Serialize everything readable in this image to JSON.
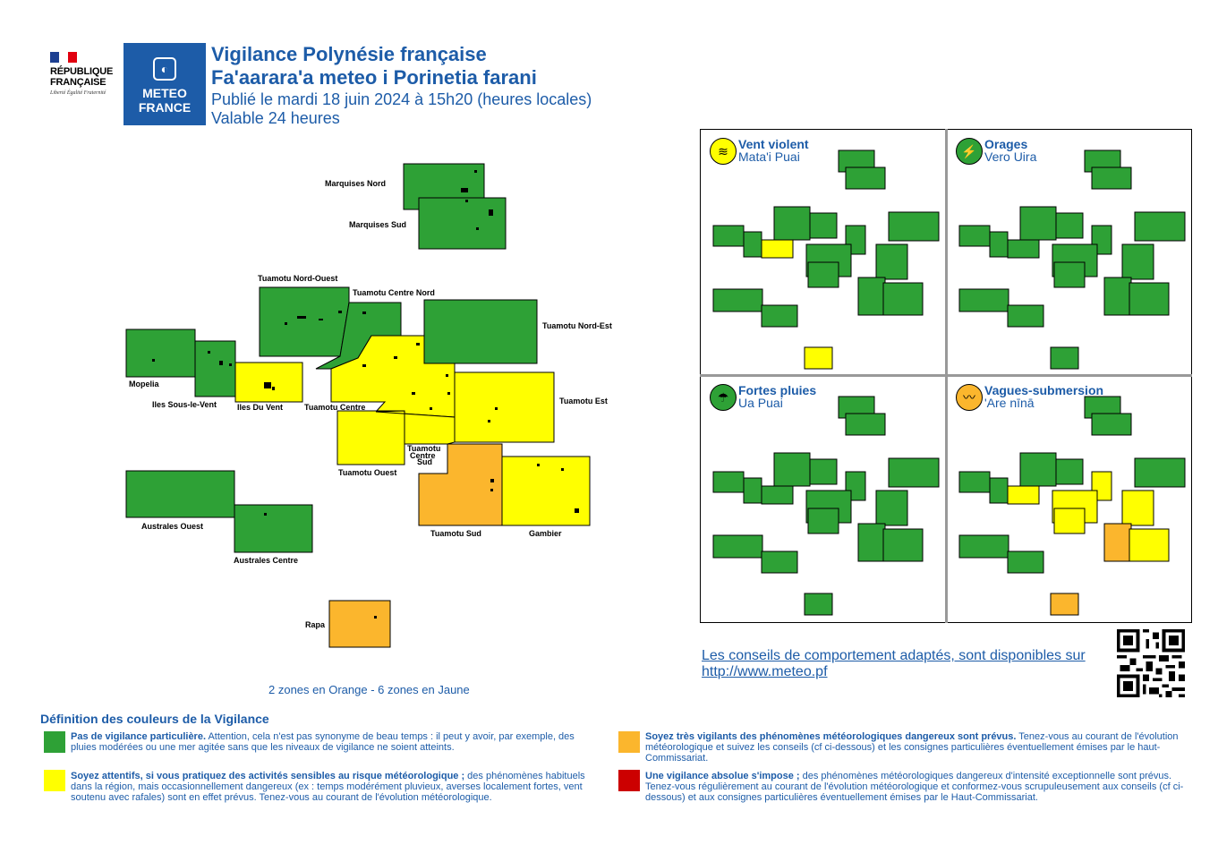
{
  "header": {
    "republique_name": "RÉPUBLIQUE FRANÇAISE",
    "republique_motto": "Liberté Égalité Fraternité",
    "meteo_logo_text": "METEO FRANCE",
    "title_fr": "Vigilance Polynésie française",
    "title_tah": "Fa'aarara'a meteo i Porinetia farani",
    "published": "Publié le mardi 18 juin 2024 à 15h20 (heures locales)",
    "validity": "Valable 24 heures"
  },
  "colors": {
    "green": "#2ea136",
    "yellow": "#ffff00",
    "orange": "#fbb62d",
    "red": "#cc0000",
    "blue": "#1d5ca8"
  },
  "zones": [
    {
      "id": "marquises-nord",
      "label": "Marquises Nord",
      "level": "green"
    },
    {
      "id": "marquises-sud",
      "label": "Marquises Sud",
      "level": "green"
    },
    {
      "id": "tuamotu-nord-ouest",
      "label": "Tuamotu Nord-Ouest",
      "level": "green"
    },
    {
      "id": "tuamotu-centre-nord",
      "label": "Tuamotu Centre Nord",
      "level": "green"
    },
    {
      "id": "tuamotu-nord-est",
      "label": "Tuamotu Nord-Est",
      "level": "green"
    },
    {
      "id": "mopelia",
      "label": "Mopelia",
      "level": "green"
    },
    {
      "id": "iles-sous-le-vent",
      "label": "Iles Sous-le-Vent",
      "level": "green"
    },
    {
      "id": "iles-du-vent",
      "label": "Iles Du Vent",
      "level": "yellow"
    },
    {
      "id": "tuamotu-centre",
      "label": "Tuamotu Centre",
      "level": "yellow"
    },
    {
      "id": "tuamotu-est",
      "label": "Tuamotu Est",
      "level": "yellow"
    },
    {
      "id": "tuamotu-ouest",
      "label": "Tuamotu Ouest",
      "level": "yellow"
    },
    {
      "id": "tuamotu-centre-sud",
      "label": "Tuamotu Centre Sud",
      "level": "yellow"
    },
    {
      "id": "australes-ouest",
      "label": "Australes Ouest",
      "level": "green"
    },
    {
      "id": "australes-centre",
      "label": "Australes Centre",
      "level": "green"
    },
    {
      "id": "tuamotu-sud",
      "label": "Tuamotu Sud",
      "level": "orange"
    },
    {
      "id": "gambier",
      "label": "Gambier",
      "level": "yellow"
    },
    {
      "id": "rapa",
      "label": "Rapa",
      "level": "orange"
    }
  ],
  "label_parts": {
    "tcs1": "Tuamotu",
    "tcs2": "Centre",
    "tcs3": "Sud"
  },
  "panels": [
    {
      "title": "Vent violent",
      "subtitle": "Mata'i Puai",
      "icon": "wind-icon"
    },
    {
      "title": "Orages",
      "subtitle": "Vero Uira",
      "icon": "lightning-icon"
    },
    {
      "title": "Fortes pluies",
      "subtitle": "Ua Puai",
      "icon": "rain-icon"
    },
    {
      "title": "Vagues-submersion",
      "subtitle": "'Are nīnā",
      "icon": "waves-icon"
    }
  ],
  "summary": "2 zones en Orange - 6 zones en Jaune",
  "advice": {
    "line1": "Les conseils de comportement adaptés, sont disponibles sur",
    "line2": "http://www.meteo.pf"
  },
  "legend": {
    "title": "Définition des couleurs de la Vigilance",
    "green_bold": "Pas de vigilance particulière.",
    "green_text": " Attention, cela n'est pas synonyme de beau temps : il peut y avoir, par exemple, des pluies modérées ou une mer agitée sans que les niveaux de vigilance ne soient atteints.",
    "yellow_bold": "Soyez attentifs, si vous pratiquez des activités sensibles au risque météorologique ;",
    "yellow_text": " des phénomènes habituels dans la région, mais occasionnellement dangereux (ex : temps modérément pluvieux, averses localement fortes, vent soutenu avec rafales) sont en effet prévus. Tenez-vous au courant de l'évolution météorologique.",
    "orange_bold": "Soyez très vigilants des phénomènes météorologiques dangereux sont prévus.",
    "orange_text": " Tenez-vous au courant de l'évolution météorologique et suivez les conseils (cf ci-dessous) et les consignes particulières éventuellement émises par le haut-Commissariat.",
    "red_bold": "Une vigilance absolue s'impose ;",
    "red_text": " des phénomènes météorologiques dangereux d'intensité exceptionnelle sont prévus. Tenez-vous régulièrement au courant de l'évolution météorologique et conformez-vous scrupuleusement aux conseils (cf ci-dessous) et aux consignes particulières éventuellement émises par le Haut-Commissariat."
  }
}
